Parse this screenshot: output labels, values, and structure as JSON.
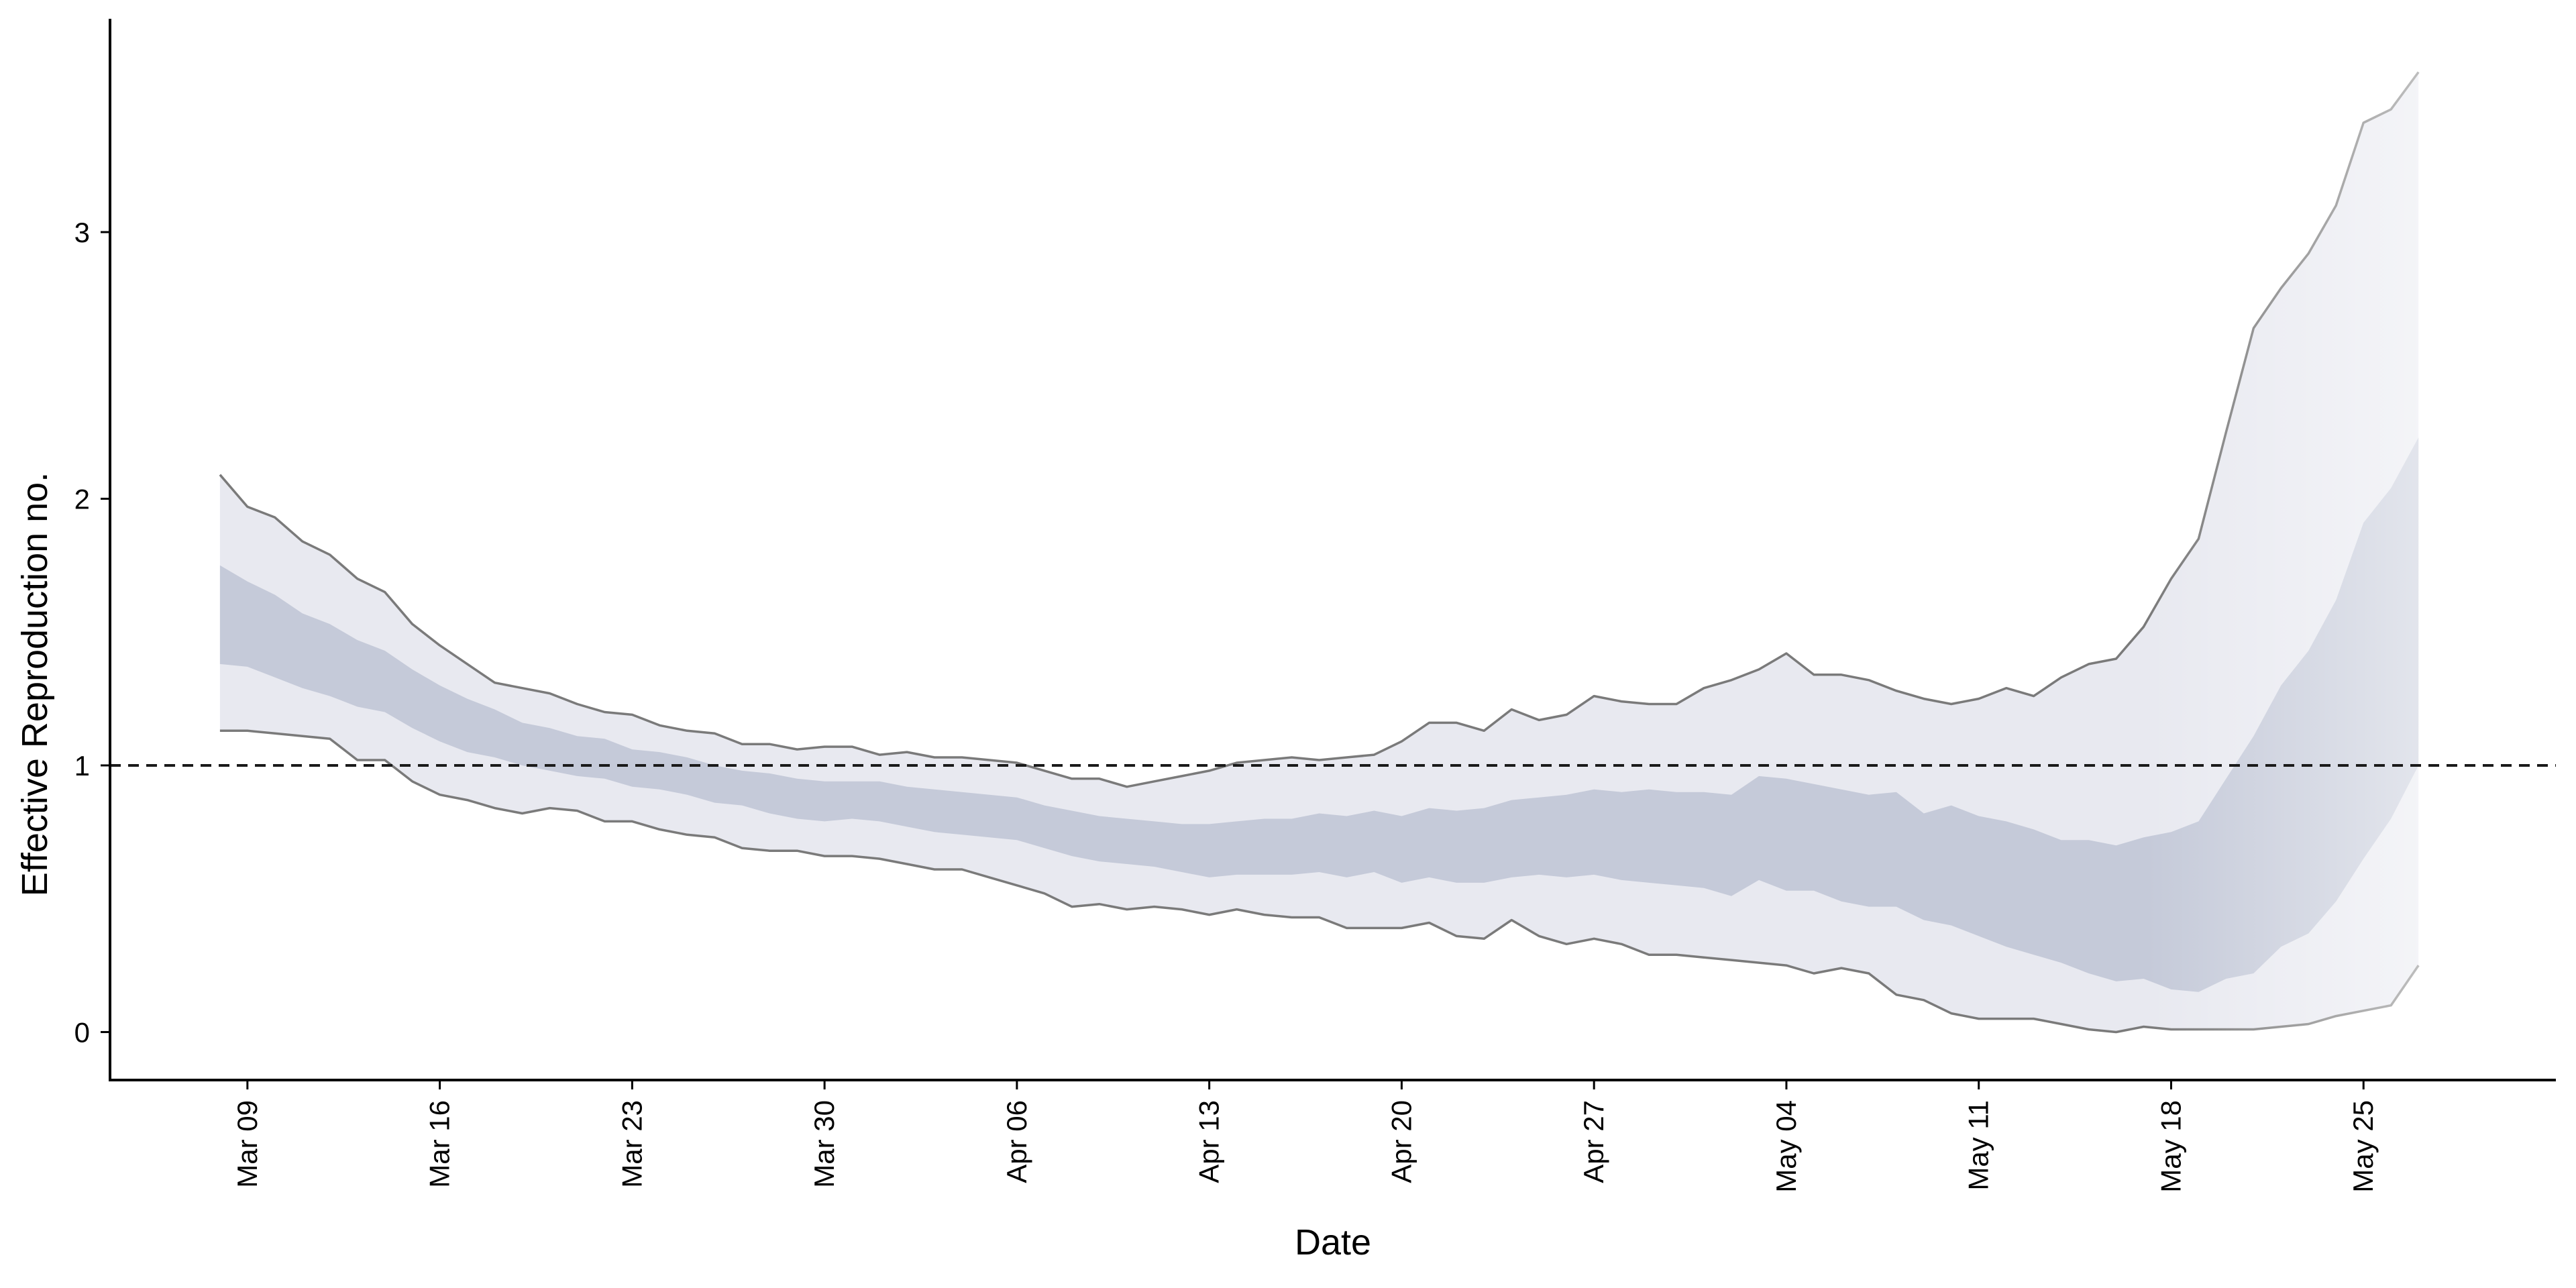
{
  "chart_data": {
    "type": "area",
    "title": "",
    "xlabel": "Date",
    "ylabel": "Effective Reproduction no.",
    "x_start": "2020-03-08",
    "x_end": "2020-05-27",
    "xlim": [
      "2020-03-04",
      "2020-06-01"
    ],
    "ylim": [
      -0.18,
      3.8
    ],
    "x_ticks": [
      {
        "date": "2020-03-09",
        "label": "Mar 09"
      },
      {
        "date": "2020-03-16",
        "label": "Mar 16"
      },
      {
        "date": "2020-03-23",
        "label": "Mar 23"
      },
      {
        "date": "2020-03-30",
        "label": "Mar 30"
      },
      {
        "date": "2020-04-06",
        "label": "Apr 06"
      },
      {
        "date": "2020-04-13",
        "label": "Apr 13"
      },
      {
        "date": "2020-04-20",
        "label": "Apr 20"
      },
      {
        "date": "2020-04-27",
        "label": "Apr 27"
      },
      {
        "date": "2020-05-04",
        "label": "May 04"
      },
      {
        "date": "2020-05-11",
        "label": "May 11"
      },
      {
        "date": "2020-05-18",
        "label": "May 18"
      },
      {
        "date": "2020-05-25",
        "label": "May 25"
      }
    ],
    "y_ticks": [
      {
        "value": 0,
        "label": "0"
      },
      {
        "value": 1,
        "label": "1"
      },
      {
        "value": 2,
        "label": "2"
      },
      {
        "value": 3,
        "label": "3"
      }
    ],
    "reference_line": {
      "y": 1,
      "style": "dashed",
      "color": "#1a1a1a"
    },
    "grid": false,
    "legend": "none",
    "colors": {
      "outer_band": "#e8e9f0",
      "inner_band": "#c5cad9",
      "bound_line": "#7a7a7a"
    },
    "series": [
      {
        "role": "outer_upper",
        "values": [
          2.09,
          1.97,
          1.93,
          1.84,
          1.79,
          1.7,
          1.65,
          1.53,
          1.45,
          1.38,
          1.31,
          1.29,
          1.27,
          1.23,
          1.2,
          1.19,
          1.15,
          1.13,
          1.12,
          1.08,
          1.08,
          1.06,
          1.07,
          1.07,
          1.04,
          1.05,
          1.03,
          1.03,
          1.02,
          1.01,
          0.98,
          0.95,
          0.95,
          0.92,
          0.94,
          0.96,
          0.98,
          1.01,
          1.02,
          1.03,
          1.02,
          1.03,
          1.04,
          1.09,
          1.16,
          1.16,
          1.13,
          1.21,
          1.17,
          1.19,
          1.26,
          1.24,
          1.23,
          1.23,
          1.29,
          1.32,
          1.36,
          1.42,
          1.34,
          1.34,
          1.32,
          1.28,
          1.25,
          1.23,
          1.25,
          1.29,
          1.26,
          1.33,
          1.38,
          1.4,
          1.52,
          1.7,
          1.85,
          2.25,
          2.64,
          2.79,
          2.92,
          3.1,
          3.41,
          3.46,
          3.6
        ]
      },
      {
        "role": "inner_upper",
        "values": [
          1.75,
          1.69,
          1.64,
          1.57,
          1.53,
          1.47,
          1.43,
          1.36,
          1.3,
          1.25,
          1.21,
          1.16,
          1.14,
          1.11,
          1.1,
          1.06,
          1.05,
          1.03,
          1.0,
          0.98,
          0.97,
          0.95,
          0.94,
          0.94,
          0.94,
          0.92,
          0.91,
          0.9,
          0.89,
          0.88,
          0.85,
          0.83,
          0.81,
          0.8,
          0.79,
          0.78,
          0.78,
          0.79,
          0.8,
          0.8,
          0.82,
          0.81,
          0.83,
          0.81,
          0.84,
          0.83,
          0.84,
          0.87,
          0.88,
          0.89,
          0.91,
          0.9,
          0.91,
          0.9,
          0.9,
          0.89,
          0.96,
          0.95,
          0.93,
          0.91,
          0.89,
          0.9,
          0.82,
          0.85,
          0.81,
          0.79,
          0.76,
          0.72,
          0.72,
          0.7,
          0.73,
          0.75,
          0.79,
          0.95,
          1.11,
          1.3,
          1.43,
          1.62,
          1.91,
          2.04,
          2.23
        ]
      },
      {
        "role": "inner_lower",
        "values": [
          1.38,
          1.37,
          1.33,
          1.29,
          1.26,
          1.22,
          1.2,
          1.14,
          1.09,
          1.05,
          1.03,
          1.0,
          0.98,
          0.96,
          0.95,
          0.92,
          0.91,
          0.89,
          0.86,
          0.85,
          0.82,
          0.8,
          0.79,
          0.8,
          0.79,
          0.77,
          0.75,
          0.74,
          0.73,
          0.72,
          0.69,
          0.66,
          0.64,
          0.63,
          0.62,
          0.6,
          0.58,
          0.59,
          0.59,
          0.59,
          0.6,
          0.58,
          0.6,
          0.56,
          0.58,
          0.56,
          0.56,
          0.58,
          0.59,
          0.58,
          0.59,
          0.57,
          0.56,
          0.55,
          0.54,
          0.51,
          0.57,
          0.53,
          0.53,
          0.49,
          0.47,
          0.47,
          0.42,
          0.4,
          0.36,
          0.32,
          0.29,
          0.26,
          0.22,
          0.19,
          0.2,
          0.16,
          0.15,
          0.2,
          0.22,
          0.32,
          0.37,
          0.49,
          0.65,
          0.8,
          1.0
        ]
      },
      {
        "role": "outer_lower",
        "values": [
          1.13,
          1.13,
          1.12,
          1.11,
          1.1,
          1.02,
          1.02,
          0.94,
          0.89,
          0.87,
          0.84,
          0.82,
          0.84,
          0.83,
          0.79,
          0.79,
          0.76,
          0.74,
          0.73,
          0.69,
          0.68,
          0.68,
          0.66,
          0.66,
          0.65,
          0.63,
          0.61,
          0.61,
          0.58,
          0.55,
          0.52,
          0.47,
          0.48,
          0.46,
          0.47,
          0.46,
          0.44,
          0.46,
          0.44,
          0.43,
          0.43,
          0.39,
          0.39,
          0.39,
          0.41,
          0.36,
          0.35,
          0.42,
          0.36,
          0.33,
          0.35,
          0.33,
          0.29,
          0.29,
          0.28,
          0.27,
          0.26,
          0.25,
          0.22,
          0.24,
          0.22,
          0.14,
          0.12,
          0.07,
          0.05,
          0.05,
          0.05,
          0.03,
          0.01,
          0.0,
          0.02,
          0.01,
          0.01,
          0.01,
          0.01,
          0.02,
          0.03,
          0.06,
          0.08,
          0.1,
          0.25
        ]
      }
    ]
  }
}
